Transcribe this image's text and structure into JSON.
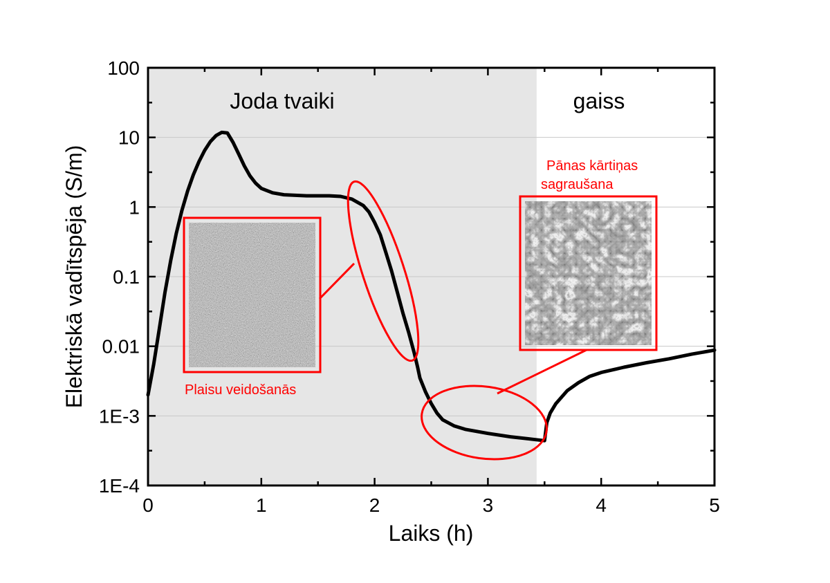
{
  "chart_data": {
    "type": "line",
    "title": "",
    "xlabel": "Laiks (h)",
    "ylabel": "Elektriskā vadītspēja (S/m)",
    "xlim": [
      0,
      5
    ],
    "ylim": [
      0.0001,
      100
    ],
    "yscale": "log",
    "grid": "horizontal",
    "x_ticks": [
      0,
      1,
      2,
      3,
      4,
      5
    ],
    "y_ticks": [
      0.0001,
      0.001,
      0.01,
      0.1,
      1,
      10,
      100
    ],
    "y_tick_labels": [
      "1E-4",
      "1E-3",
      "0.01",
      "0.1",
      "1",
      "10",
      "100"
    ],
    "shaded_region": {
      "x_start": 0,
      "x_end": 3.43,
      "color": "#e6e6e6"
    },
    "region_labels": [
      {
        "text": "Joda tvaiki",
        "x": 1.2
      },
      {
        "text": "gaiss",
        "x": 3.95
      }
    ],
    "series": [
      {
        "color": "#000000",
        "points": [
          [
            0.0,
            0.002
          ],
          [
            0.05,
            0.0055
          ],
          [
            0.1,
            0.018
          ],
          [
            0.15,
            0.06
          ],
          [
            0.2,
            0.17
          ],
          [
            0.25,
            0.42
          ],
          [
            0.3,
            0.9
          ],
          [
            0.35,
            1.7
          ],
          [
            0.4,
            2.9
          ],
          [
            0.45,
            4.5
          ],
          [
            0.5,
            6.5
          ],
          [
            0.55,
            8.7
          ],
          [
            0.6,
            10.6
          ],
          [
            0.65,
            11.8
          ],
          [
            0.7,
            11.6
          ],
          [
            0.75,
            8.5
          ],
          [
            0.8,
            5.8
          ],
          [
            0.85,
            3.9
          ],
          [
            0.9,
            2.8
          ],
          [
            0.95,
            2.2
          ],
          [
            1.0,
            1.85
          ],
          [
            1.1,
            1.6
          ],
          [
            1.2,
            1.5
          ],
          [
            1.4,
            1.45
          ],
          [
            1.6,
            1.45
          ],
          [
            1.7,
            1.42
          ],
          [
            1.8,
            1.3
          ],
          [
            1.9,
            1.05
          ],
          [
            1.95,
            0.85
          ],
          [
            2.0,
            0.6
          ],
          [
            2.05,
            0.4
          ],
          [
            2.1,
            0.22
          ],
          [
            2.15,
            0.12
          ],
          [
            2.2,
            0.06
          ],
          [
            2.25,
            0.03
          ],
          [
            2.3,
            0.016
          ],
          [
            2.35,
            0.008
          ],
          [
            2.38,
            0.005
          ],
          [
            2.4,
            0.0035
          ],
          [
            2.45,
            0.0022
          ],
          [
            2.5,
            0.0015
          ],
          [
            2.55,
            0.0011
          ],
          [
            2.6,
            0.00088
          ],
          [
            2.7,
            0.00072
          ],
          [
            2.8,
            0.00064
          ],
          [
            3.0,
            0.00056
          ],
          [
            3.2,
            0.0005
          ],
          [
            3.4,
            0.00046
          ],
          [
            3.5,
            0.00044
          ],
          [
            3.52,
            0.0008
          ],
          [
            3.55,
            0.0011
          ],
          [
            3.6,
            0.0015
          ],
          [
            3.7,
            0.0023
          ],
          [
            3.8,
            0.003
          ],
          [
            3.9,
            0.0037
          ],
          [
            4.0,
            0.0042
          ],
          [
            4.2,
            0.005
          ],
          [
            4.4,
            0.0058
          ],
          [
            4.6,
            0.0066
          ],
          [
            4.8,
            0.0077
          ],
          [
            5.0,
            0.0088
          ]
        ]
      }
    ],
    "annotations": [
      {
        "text": "Plaisu veidošanās",
        "color": "#ff0000"
      },
      {
        "lines": [
          "Pānas kārtiņas",
          "sagraušana"
        ],
        "color": "#ff0000"
      }
    ],
    "ellipses": [
      {
        "cx": 2.12,
        "cy": 0.09,
        "note": "crack formation region"
      },
      {
        "cx": 3.0,
        "cy": 0.0008,
        "note": "film destruction region"
      }
    ]
  }
}
